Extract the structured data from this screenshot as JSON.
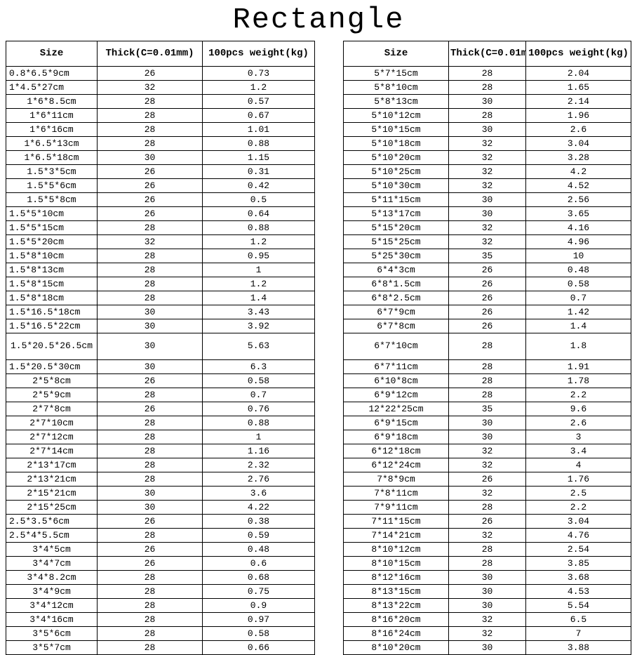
{
  "title": "Rectangle",
  "headers_left": {
    "c1": "Size",
    "c2": "Thick(C=0.01mm)",
    "c3": "100pcs weight(kg)"
  },
  "headers_right": {
    "c1": "Size",
    "c2": "Thick(C=0.01mm)",
    "c3": "100pcs weight(kg)"
  },
  "left_rows": [
    {
      "size": "0.8*6.5*9cm",
      "thick": "26",
      "weight": "0.73",
      "align": "left"
    },
    {
      "size": "1*4.5*27cm",
      "thick": "32",
      "weight": "1.2",
      "align": "left"
    },
    {
      "size": "1*6*8.5cm",
      "thick": "28",
      "weight": "0.57",
      "align": "center"
    },
    {
      "size": "1*6*11cm",
      "thick": "28",
      "weight": "0.67",
      "align": "center"
    },
    {
      "size": "1*6*16cm",
      "thick": "28",
      "weight": "1.01",
      "align": "center"
    },
    {
      "size": "1*6.5*13cm",
      "thick": "28",
      "weight": "0.88",
      "align": "center"
    },
    {
      "size": "1*6.5*18cm",
      "thick": "30",
      "weight": "1.15",
      "align": "center"
    },
    {
      "size": "1.5*3*5cm",
      "thick": "26",
      "weight": "0.31",
      "align": "center"
    },
    {
      "size": "1.5*5*6cm",
      "thick": "26",
      "weight": "0.42",
      "align": "center"
    },
    {
      "size": "1.5*5*8cm",
      "thick": "26",
      "weight": "0.5",
      "align": "center"
    },
    {
      "size": "1.5*5*10cm",
      "thick": "26",
      "weight": "0.64",
      "align": "left"
    },
    {
      "size": "1.5*5*15cm",
      "thick": "28",
      "weight": "0.88",
      "align": "left"
    },
    {
      "size": "1.5*5*20cm",
      "thick": "32",
      "weight": "1.2",
      "align": "left"
    },
    {
      "size": "1.5*8*10cm",
      "thick": "28",
      "weight": "0.95",
      "align": "left"
    },
    {
      "size": "1.5*8*13cm",
      "thick": "28",
      "weight": "1",
      "align": "left"
    },
    {
      "size": "1.5*8*15cm",
      "thick": "28",
      "weight": "1.2",
      "align": "left"
    },
    {
      "size": "1.5*8*18cm",
      "thick": "28",
      "weight": "1.4",
      "align": "left"
    },
    {
      "size": "1.5*16.5*18cm",
      "thick": "30",
      "weight": "3.43",
      "align": "left"
    },
    {
      "size": "1.5*16.5*22cm",
      "thick": "30",
      "weight": "3.92",
      "align": "left"
    },
    {
      "size": "1.5*20.5*26.5cm",
      "thick": "30",
      "weight": "5.63",
      "align": "center",
      "tall": true
    },
    {
      "size": "1.5*20.5*30cm",
      "thick": "30",
      "weight": "6.3",
      "align": "left"
    },
    {
      "size": "2*5*8cm",
      "thick": "26",
      "weight": "0.58",
      "align": "center"
    },
    {
      "size": "2*5*9cm",
      "thick": "28",
      "weight": "0.7",
      "align": "center"
    },
    {
      "size": "2*7*8cm",
      "thick": "26",
      "weight": "0.76",
      "align": "center"
    },
    {
      "size": "2*7*10cm",
      "thick": "28",
      "weight": "0.88",
      "align": "center"
    },
    {
      "size": "2*7*12cm",
      "thick": "28",
      "weight": "1",
      "align": "center"
    },
    {
      "size": "2*7*14cm",
      "thick": "28",
      "weight": "1.16",
      "align": "center"
    },
    {
      "size": "2*13*17cm",
      "thick": "28",
      "weight": "2.32",
      "align": "center"
    },
    {
      "size": "2*13*21cm",
      "thick": "28",
      "weight": "2.76",
      "align": "center"
    },
    {
      "size": "2*15*21cm",
      "thick": "30",
      "weight": "3.6",
      "align": "center"
    },
    {
      "size": "2*15*25cm",
      "thick": "30",
      "weight": "4.22",
      "align": "center"
    },
    {
      "size": "2.5*3.5*6cm",
      "thick": "26",
      "weight": "0.38",
      "align": "left"
    },
    {
      "size": "2.5*4*5.5cm",
      "thick": "28",
      "weight": "0.59",
      "align": "left"
    },
    {
      "size": "3*4*5cm",
      "thick": "26",
      "weight": "0.48",
      "align": "center"
    },
    {
      "size": "3*4*7cm",
      "thick": "26",
      "weight": "0.6",
      "align": "center"
    },
    {
      "size": "3*4*8.2cm",
      "thick": "28",
      "weight": "0.68",
      "align": "center"
    },
    {
      "size": "3*4*9cm",
      "thick": "28",
      "weight": "0.75",
      "align": "center"
    },
    {
      "size": "3*4*12cm",
      "thick": "28",
      "weight": "0.9",
      "align": "center"
    },
    {
      "size": "3*4*16cm",
      "thick": "28",
      "weight": "0.97",
      "align": "center"
    },
    {
      "size": "3*5*6cm",
      "thick": "28",
      "weight": "0.58",
      "align": "center"
    },
    {
      "size": "3*5*7cm",
      "thick": "28",
      "weight": "0.66",
      "align": "center"
    }
  ],
  "right_rows": [
    {
      "size": "5*7*15cm",
      "thick": "28",
      "weight": "2.04"
    },
    {
      "size": "5*8*10cm",
      "thick": "28",
      "weight": "1.65"
    },
    {
      "size": "5*8*13cm",
      "thick": "30",
      "weight": "2.14"
    },
    {
      "size": "5*10*12cm",
      "thick": "28",
      "weight": "1.96"
    },
    {
      "size": "5*10*15cm",
      "thick": "30",
      "weight": "2.6"
    },
    {
      "size": "5*10*18cm",
      "thick": "32",
      "weight": "3.04"
    },
    {
      "size": "5*10*20cm",
      "thick": "32",
      "weight": "3.28"
    },
    {
      "size": "5*10*25cm",
      "thick": "32",
      "weight": "4.2"
    },
    {
      "size": "5*10*30cm",
      "thick": "32",
      "weight": "4.52"
    },
    {
      "size": "5*11*15cm",
      "thick": "30",
      "weight": "2.56"
    },
    {
      "size": "5*13*17cm",
      "thick": "30",
      "weight": "3.65"
    },
    {
      "size": "5*15*20cm",
      "thick": "32",
      "weight": "4.16"
    },
    {
      "size": "5*15*25cm",
      "thick": "32",
      "weight": "4.96"
    },
    {
      "size": "5*25*30cm",
      "thick": "35",
      "weight": "10"
    },
    {
      "size": "6*4*3cm",
      "thick": "26",
      "weight": "0.48"
    },
    {
      "size": "6*8*1.5cm",
      "thick": "26",
      "weight": "0.58"
    },
    {
      "size": "6*8*2.5cm",
      "thick": "26",
      "weight": "0.7"
    },
    {
      "size": "6*7*9cm",
      "thick": "26",
      "weight": "1.42"
    },
    {
      "size": "6*7*8cm",
      "thick": "26",
      "weight": "1.4"
    },
    {
      "size": "6*7*10cm",
      "thick": "28",
      "weight": "1.8",
      "tall": true
    },
    {
      "size": "6*7*11cm",
      "thick": "28",
      "weight": "1.91"
    },
    {
      "size": "6*10*8cm",
      "thick": "28",
      "weight": "1.78"
    },
    {
      "size": "6*9*12cm",
      "thick": "28",
      "weight": "2.2"
    },
    {
      "size": "12*22*25cm",
      "thick": "35",
      "weight": "9.6"
    },
    {
      "size": "6*9*15cm",
      "thick": "30",
      "weight": "2.6"
    },
    {
      "size": "6*9*18cm",
      "thick": "30",
      "weight": "3"
    },
    {
      "size": "6*12*18cm",
      "thick": "32",
      "weight": "3.4"
    },
    {
      "size": "6*12*24cm",
      "thick": "32",
      "weight": "4"
    },
    {
      "size": "7*8*9cm",
      "thick": "26",
      "weight": "1.76"
    },
    {
      "size": "7*8*11cm",
      "thick": "32",
      "weight": "2.5"
    },
    {
      "size": "7*9*11cm",
      "thick": "28",
      "weight": "2.2"
    },
    {
      "size": "7*11*15cm",
      "thick": "26",
      "weight": "3.04"
    },
    {
      "size": "7*14*21cm",
      "thick": "32",
      "weight": "4.76"
    },
    {
      "size": "8*10*12cm",
      "thick": "28",
      "weight": "2.54"
    },
    {
      "size": "8*10*15cm",
      "thick": "28",
      "weight": "3.85"
    },
    {
      "size": "8*12*16cm",
      "thick": "30",
      "weight": "3.68"
    },
    {
      "size": "8*13*15cm",
      "thick": "30",
      "weight": "4.53"
    },
    {
      "size": "8*13*22cm",
      "thick": "30",
      "weight": "5.54"
    },
    {
      "size": "8*16*20cm",
      "thick": "32",
      "weight": "6.5"
    },
    {
      "size": "8*16*24cm",
      "thick": "32",
      "weight": "7"
    },
    {
      "size": "8*10*20cm",
      "thick": "30",
      "weight": "3.88"
    }
  ],
  "colors": {
    "border": "#000000",
    "text": "#000000",
    "bg": "#ffffff"
  }
}
